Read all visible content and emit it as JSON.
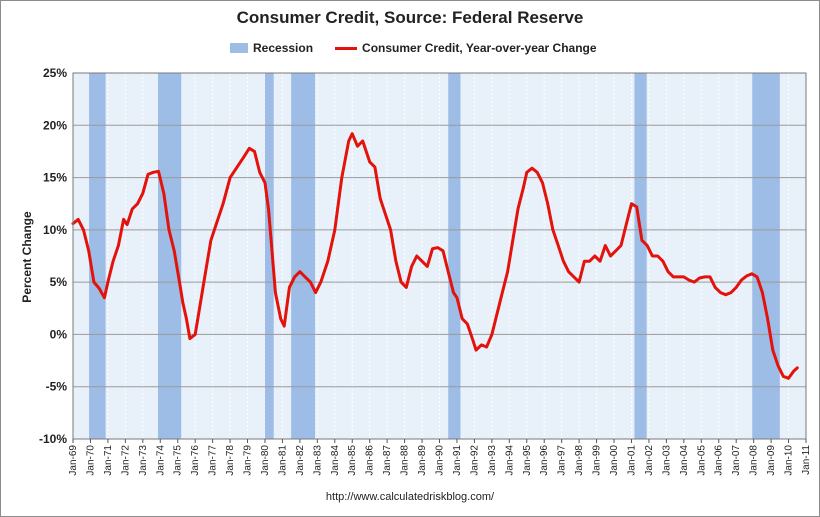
{
  "chart_data": {
    "type": "line",
    "title": "Consumer Credit, Source: Federal Reserve",
    "ylabel": "Percent Change",
    "xlabel": "",
    "ylim": [
      -10,
      25
    ],
    "xlim": [
      1969.0,
      2011.0
    ],
    "yticks": [
      {
        "value": 25,
        "label": "25%"
      },
      {
        "value": 20,
        "label": "20%"
      },
      {
        "value": 15,
        "label": "15%"
      },
      {
        "value": 10,
        "label": "10%"
      },
      {
        "value": 5,
        "label": "5%"
      },
      {
        "value": 0,
        "label": "0%"
      },
      {
        "value": -5,
        "label": "-5%"
      },
      {
        "value": -10,
        "label": "-10%"
      }
    ],
    "xticks": [
      "Jan-69",
      "Jan-70",
      "Jan-71",
      "Jan-72",
      "Jan-73",
      "Jan-74",
      "Jan-75",
      "Jan-76",
      "Jan-77",
      "Jan-78",
      "Jan-79",
      "Jan-80",
      "Jan-81",
      "Jan-82",
      "Jan-83",
      "Jan-84",
      "Jan-85",
      "Jan-86",
      "Jan-87",
      "Jan-88",
      "Jan-89",
      "Jan-90",
      "Jan-91",
      "Jan-92",
      "Jan-93",
      "Jan-94",
      "Jan-95",
      "Jan-96",
      "Jan-97",
      "Jan-98",
      "Jan-99",
      "Jan-00",
      "Jan-01",
      "Jan-02",
      "Jan-03",
      "Jan-04",
      "Jan-05",
      "Jan-06",
      "Jan-07",
      "Jan-08",
      "Jan-09",
      "Jan-10",
      "Jan-11"
    ],
    "legend": {
      "position": "top-center",
      "recession_label": "Recession",
      "line_label": "Consumer Credit, Year-over-year Change"
    },
    "recessions": [
      {
        "start": 1969.92,
        "end": 1970.87
      },
      {
        "start": 1973.87,
        "end": 1975.2
      },
      {
        "start": 1980.0,
        "end": 1980.5
      },
      {
        "start": 1981.5,
        "end": 1982.87
      },
      {
        "start": 1990.5,
        "end": 1991.2
      },
      {
        "start": 2001.17,
        "end": 2001.87
      },
      {
        "start": 2007.92,
        "end": 2009.5
      }
    ],
    "series": [
      {
        "name": "Consumer Credit, Year-over-year Change",
        "color": "#e3120b",
        "x": [
          1969.0,
          1969.3,
          1969.6,
          1969.9,
          1970.2,
          1970.5,
          1970.8,
          1971.0,
          1971.3,
          1971.6,
          1971.9,
          1972.1,
          1972.4,
          1972.7,
          1973.0,
          1973.3,
          1973.6,
          1973.9,
          1974.2,
          1974.5,
          1974.8,
          1975.1,
          1975.3,
          1975.5,
          1975.7,
          1976.0,
          1976.3,
          1976.6,
          1976.9,
          1977.2,
          1977.6,
          1978.0,
          1978.4,
          1978.8,
          1979.1,
          1979.4,
          1979.7,
          1980.0,
          1980.2,
          1980.4,
          1980.6,
          1980.9,
          1981.1,
          1981.4,
          1981.7,
          1982.0,
          1982.3,
          1982.6,
          1982.9,
          1983.2,
          1983.6,
          1984.0,
          1984.4,
          1984.8,
          1985.0,
          1985.3,
          1985.6,
          1986.0,
          1986.3,
          1986.6,
          1986.9,
          1987.2,
          1987.5,
          1987.8,
          1988.1,
          1988.4,
          1988.7,
          1989.0,
          1989.3,
          1989.6,
          1989.9,
          1990.2,
          1990.5,
          1990.8,
          1991.0,
          1991.3,
          1991.6,
          1991.9,
          1992.1,
          1992.4,
          1992.7,
          1993.0,
          1993.3,
          1993.6,
          1993.9,
          1994.2,
          1994.5,
          1994.8,
          1995.0,
          1995.3,
          1995.6,
          1995.9,
          1996.2,
          1996.5,
          1996.8,
          1997.1,
          1997.4,
          1997.7,
          1998.0,
          1998.3,
          1998.6,
          1998.9,
          1999.2,
          1999.5,
          1999.8,
          2000.1,
          2000.4,
          2000.7,
          2001.0,
          2001.3,
          2001.6,
          2001.9,
          2002.2,
          2002.5,
          2002.8,
          2003.1,
          2003.4,
          2003.7,
          2004.0,
          2004.3,
          2004.6,
          2004.9,
          2005.2,
          2005.5,
          2005.8,
          2006.1,
          2006.4,
          2006.7,
          2007.0,
          2007.3,
          2007.6,
          2007.9,
          2008.2,
          2008.5,
          2008.8,
          2009.1,
          2009.4,
          2009.7,
          2010.0,
          2010.3,
          2010.5
        ],
        "y": [
          10.6,
          11.0,
          10.0,
          8.0,
          5.0,
          4.4,
          3.5,
          5.0,
          7.0,
          8.5,
          11.0,
          10.5,
          12.0,
          12.5,
          13.5,
          15.3,
          15.5,
          15.6,
          13.5,
          10.0,
          8.0,
          5.0,
          3.0,
          1.5,
          -0.4,
          0.0,
          3.0,
          6.0,
          9.0,
          10.5,
          12.5,
          15.0,
          16.0,
          17.0,
          17.8,
          17.5,
          15.5,
          14.5,
          12.0,
          8.0,
          4.0,
          1.5,
          0.8,
          4.5,
          5.5,
          6.0,
          5.5,
          5.0,
          4.0,
          5.0,
          7.0,
          10.0,
          15.0,
          18.5,
          19.2,
          18.0,
          18.5,
          16.5,
          16.0,
          13.0,
          11.5,
          10.0,
          7.0,
          5.0,
          4.5,
          6.5,
          7.5,
          7.0,
          6.5,
          8.2,
          8.3,
          8.0,
          6.0,
          4.0,
          3.5,
          1.5,
          1.0,
          -0.5,
          -1.5,
          -1.0,
          -1.2,
          0.0,
          2.0,
          4.0,
          6.0,
          9.0,
          12.0,
          14.0,
          15.5,
          15.9,
          15.5,
          14.5,
          12.5,
          10.0,
          8.5,
          7.0,
          6.0,
          5.5,
          5.0,
          7.0,
          7.0,
          7.5,
          7.0,
          8.5,
          7.5,
          8.0,
          8.5,
          10.5,
          12.5,
          12.2,
          9.0,
          8.5,
          7.5,
          7.5,
          7.0,
          6.0,
          5.5,
          5.5,
          5.5,
          5.2,
          5.0,
          5.4,
          5.5,
          5.5,
          4.5,
          4.0,
          3.8,
          4.0,
          4.5,
          5.2,
          5.6,
          5.8,
          5.5,
          4.0,
          1.5,
          -1.5,
          -3.0,
          -4.0,
          -4.2,
          -3.5,
          -3.2
        ]
      }
    ],
    "source_text": "http://www.calculatedriskblog.com/"
  },
  "colors": {
    "plot_bg": "#e8f0fa",
    "recession": "#9dbce6",
    "line": "#e3120b",
    "grid": "#9a9a9a",
    "frame": "#8c8c8c"
  }
}
